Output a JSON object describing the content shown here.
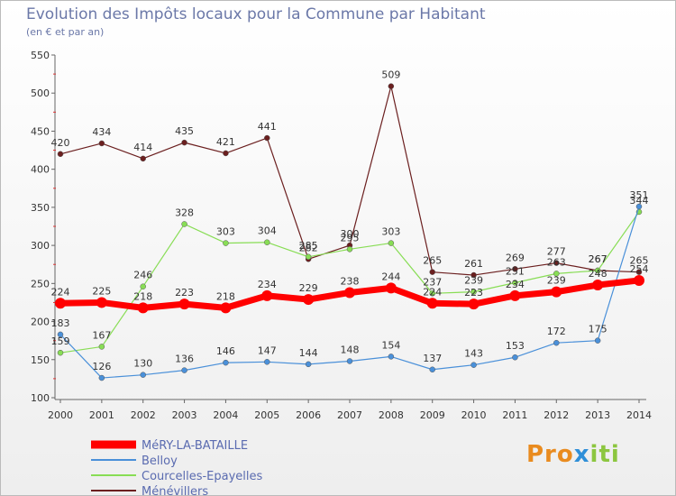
{
  "header": {
    "title": "Evolution des Impôts locaux pour la Commune par Habitant",
    "subtitle": "(en € et par an)"
  },
  "logo": {
    "text": "Proxiti"
  },
  "chart_data": {
    "type": "line",
    "title": "Evolution des Impôts locaux pour la Commune par Habitant",
    "subtitle": "(en € et par an)",
    "x": [
      "2000",
      "2001",
      "2002",
      "2003",
      "2004",
      "2005",
      "2006",
      "2007",
      "2008",
      "2009",
      "2010",
      "2011",
      "2012",
      "2013",
      "2014"
    ],
    "ylim": [
      100,
      550
    ],
    "yticks": [
      100,
      150,
      200,
      250,
      300,
      350,
      400,
      450,
      500,
      550
    ],
    "grid": false,
    "legend_position": "bottom-left",
    "series": [
      {
        "name": "MéRY-LA-BATAILLE",
        "color": "#ff0000",
        "values": [
          224,
          225,
          218,
          223,
          218,
          234,
          229,
          238,
          244,
          224,
          223,
          234,
          239,
          248,
          254
        ]
      },
      {
        "name": "Belloy",
        "color": "#4a90d9",
        "values": [
          183,
          126,
          130,
          136,
          146,
          147,
          144,
          148,
          154,
          137,
          143,
          153,
          172,
          175,
          351
        ]
      },
      {
        "name": "Courcelles-Epayelles",
        "color": "#88dd55",
        "values": [
          159,
          167,
          246,
          328,
          303,
          304,
          285,
          295,
          303,
          237,
          239,
          251,
          263,
          267,
          344
        ]
      },
      {
        "name": "Ménévillers",
        "color": "#6b1f1f",
        "values": [
          420,
          434,
          414,
          435,
          421,
          441,
          282,
          300,
          509,
          265,
          261,
          269,
          277,
          267,
          265
        ]
      }
    ]
  }
}
